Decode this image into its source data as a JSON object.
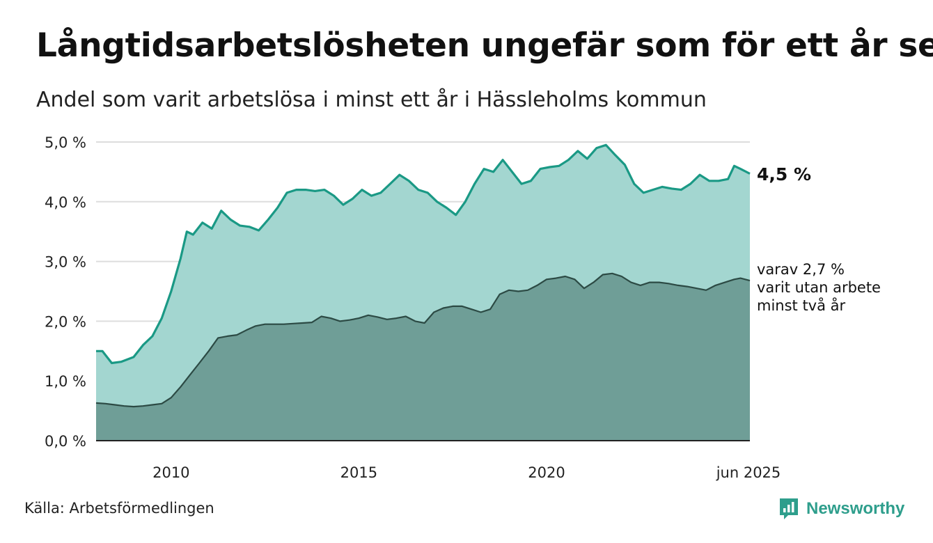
{
  "title": "Långtidsarbetslösheten ungefär som för ett år sen",
  "subtitle": "Andel som varit arbetslösa i minst ett år i Hässleholms kommun",
  "source": "Källa: Arbetsförmedlingen",
  "brand": {
    "name": "Newsworthy",
    "color": "#2e9e8c"
  },
  "colors": {
    "total_line": "#1a9985",
    "total_fill": "#a3d6d0",
    "sub_line": "#2c4a44",
    "sub_fill": "#6f9e97",
    "grid": "#dddddd"
  },
  "chart_data": {
    "type": "area",
    "ylim": [
      0,
      5
    ],
    "y_ticks": [
      "0,0 %",
      "1,0 %",
      "2,0 %",
      "3,0 %",
      "4,0 %",
      "5,0 %"
    ],
    "x_ticks": [
      "2010",
      "2015",
      "2020",
      "jun 2025"
    ],
    "x_range": [
      "2008-01",
      "2025-06"
    ],
    "annotations": {
      "total_end": "4,5 %",
      "sub_end": [
        "varav 2,7 %",
        "varit utan arbete",
        "minst två år"
      ]
    },
    "series": [
      {
        "key": "total",
        "points": [
          [
            "2008-01",
            1.5
          ],
          [
            "2008-03",
            1.5
          ],
          [
            "2008-06",
            1.3
          ],
          [
            "2008-09",
            1.32
          ],
          [
            "2009-01",
            1.4
          ],
          [
            "2009-04",
            1.6
          ],
          [
            "2009-07",
            1.75
          ],
          [
            "2009-10",
            2.05
          ],
          [
            "2010-01",
            2.5
          ],
          [
            "2010-04",
            3.05
          ],
          [
            "2010-06",
            3.5
          ],
          [
            "2010-08",
            3.45
          ],
          [
            "2010-11",
            3.65
          ],
          [
            "2011-02",
            3.55
          ],
          [
            "2011-05",
            3.85
          ],
          [
            "2011-08",
            3.7
          ],
          [
            "2011-11",
            3.6
          ],
          [
            "2012-02",
            3.58
          ],
          [
            "2012-05",
            3.52
          ],
          [
            "2012-08",
            3.7
          ],
          [
            "2012-11",
            3.9
          ],
          [
            "2013-02",
            4.15
          ],
          [
            "2013-05",
            4.2
          ],
          [
            "2013-08",
            4.2
          ],
          [
            "2013-11",
            4.18
          ],
          [
            "2014-02",
            4.2
          ],
          [
            "2014-05",
            4.1
          ],
          [
            "2014-08",
            3.95
          ],
          [
            "2014-11",
            4.05
          ],
          [
            "2015-02",
            4.2
          ],
          [
            "2015-05",
            4.1
          ],
          [
            "2015-08",
            4.15
          ],
          [
            "2015-11",
            4.3
          ],
          [
            "2016-02",
            4.45
          ],
          [
            "2016-05",
            4.35
          ],
          [
            "2016-08",
            4.2
          ],
          [
            "2016-11",
            4.15
          ],
          [
            "2017-02",
            4.0
          ],
          [
            "2017-05",
            3.9
          ],
          [
            "2017-08",
            3.78
          ],
          [
            "2017-11",
            4.0
          ],
          [
            "2018-02",
            4.3
          ],
          [
            "2018-05",
            4.55
          ],
          [
            "2018-08",
            4.5
          ],
          [
            "2018-11",
            4.7
          ],
          [
            "2019-02",
            4.5
          ],
          [
            "2019-05",
            4.3
          ],
          [
            "2019-08",
            4.35
          ],
          [
            "2019-11",
            4.55
          ],
          [
            "2020-02",
            4.58
          ],
          [
            "2020-05",
            4.6
          ],
          [
            "2020-08",
            4.7
          ],
          [
            "2020-11",
            4.85
          ],
          [
            "2021-02",
            4.72
          ],
          [
            "2021-05",
            4.9
          ],
          [
            "2021-08",
            4.95
          ],
          [
            "2021-11",
            4.78
          ],
          [
            "2022-02",
            4.62
          ],
          [
            "2022-05",
            4.3
          ],
          [
            "2022-08",
            4.15
          ],
          [
            "2022-11",
            4.2
          ],
          [
            "2023-02",
            4.25
          ],
          [
            "2023-05",
            4.22
          ],
          [
            "2023-08",
            4.2
          ],
          [
            "2023-11",
            4.3
          ],
          [
            "2024-02",
            4.45
          ],
          [
            "2024-05",
            4.35
          ],
          [
            "2024-08",
            4.35
          ],
          [
            "2024-11",
            4.38
          ],
          [
            "2025-01",
            4.6
          ],
          [
            "2025-03",
            4.55
          ],
          [
            "2025-06",
            4.47
          ]
        ]
      },
      {
        "key": "sub",
        "points": [
          [
            "2008-01",
            0.63
          ],
          [
            "2008-04",
            0.62
          ],
          [
            "2008-07",
            0.6
          ],
          [
            "2008-10",
            0.58
          ],
          [
            "2009-01",
            0.57
          ],
          [
            "2009-04",
            0.58
          ],
          [
            "2009-07",
            0.6
          ],
          [
            "2009-10",
            0.62
          ],
          [
            "2010-01",
            0.72
          ],
          [
            "2010-04",
            0.9
          ],
          [
            "2010-07",
            1.1
          ],
          [
            "2010-10",
            1.3
          ],
          [
            "2011-01",
            1.5
          ],
          [
            "2011-04",
            1.72
          ],
          [
            "2011-07",
            1.75
          ],
          [
            "2011-10",
            1.77
          ],
          [
            "2012-01",
            1.85
          ],
          [
            "2012-04",
            1.92
          ],
          [
            "2012-07",
            1.95
          ],
          [
            "2012-10",
            1.95
          ],
          [
            "2013-01",
            1.95
          ],
          [
            "2013-04",
            1.96
          ],
          [
            "2013-07",
            1.97
          ],
          [
            "2013-10",
            1.98
          ],
          [
            "2014-01",
            2.08
          ],
          [
            "2014-04",
            2.05
          ],
          [
            "2014-07",
            2.0
          ],
          [
            "2014-10",
            2.02
          ],
          [
            "2015-01",
            2.05
          ],
          [
            "2015-04",
            2.1
          ],
          [
            "2015-07",
            2.07
          ],
          [
            "2015-10",
            2.03
          ],
          [
            "2016-01",
            2.05
          ],
          [
            "2016-04",
            2.08
          ],
          [
            "2016-07",
            2.0
          ],
          [
            "2016-10",
            1.97
          ],
          [
            "2017-01",
            2.15
          ],
          [
            "2017-04",
            2.22
          ],
          [
            "2017-07",
            2.25
          ],
          [
            "2017-10",
            2.25
          ],
          [
            "2018-01",
            2.2
          ],
          [
            "2018-04",
            2.15
          ],
          [
            "2018-07",
            2.2
          ],
          [
            "2018-10",
            2.45
          ],
          [
            "2019-01",
            2.52
          ],
          [
            "2019-04",
            2.5
          ],
          [
            "2019-07",
            2.52
          ],
          [
            "2019-10",
            2.6
          ],
          [
            "2020-01",
            2.7
          ],
          [
            "2020-04",
            2.72
          ],
          [
            "2020-07",
            2.75
          ],
          [
            "2020-10",
            2.7
          ],
          [
            "2021-01",
            2.55
          ],
          [
            "2021-04",
            2.65
          ],
          [
            "2021-07",
            2.78
          ],
          [
            "2021-10",
            2.8
          ],
          [
            "2022-01",
            2.75
          ],
          [
            "2022-04",
            2.65
          ],
          [
            "2022-07",
            2.6
          ],
          [
            "2022-10",
            2.65
          ],
          [
            "2023-01",
            2.65
          ],
          [
            "2023-04",
            2.63
          ],
          [
            "2023-07",
            2.6
          ],
          [
            "2023-10",
            2.58
          ],
          [
            "2024-01",
            2.55
          ],
          [
            "2024-04",
            2.52
          ],
          [
            "2024-07",
            2.6
          ],
          [
            "2024-10",
            2.65
          ],
          [
            "2025-01",
            2.7
          ],
          [
            "2025-03",
            2.72
          ],
          [
            "2025-06",
            2.68
          ]
        ]
      }
    ]
  }
}
